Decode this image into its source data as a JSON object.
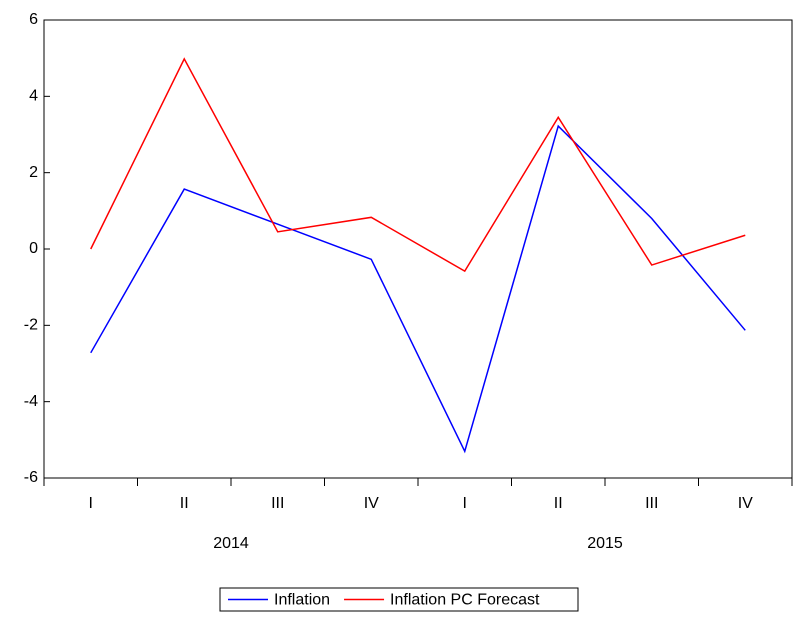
{
  "chart_data": {
    "type": "line",
    "categories": [
      "I",
      "II",
      "III",
      "IV",
      "I",
      "II",
      "III",
      "IV"
    ],
    "groups": [
      "2014",
      "2015"
    ],
    "series": [
      {
        "name": "Inflation",
        "color": "#0000ff",
        "values": [
          -2.72,
          1.57,
          0.65,
          -0.27,
          -5.3,
          3.22,
          0.8,
          -2.13
        ]
      },
      {
        "name": "Inflation PC Forecast",
        "color": "#ff0000",
        "values": [
          0.0,
          4.98,
          0.45,
          0.83,
          -0.58,
          3.45,
          -0.42,
          0.36
        ]
      }
    ],
    "ylim": [
      -6,
      6
    ],
    "yticks": [
      -6,
      -4,
      -2,
      0,
      2,
      4,
      6
    ],
    "legend": "bottom"
  }
}
